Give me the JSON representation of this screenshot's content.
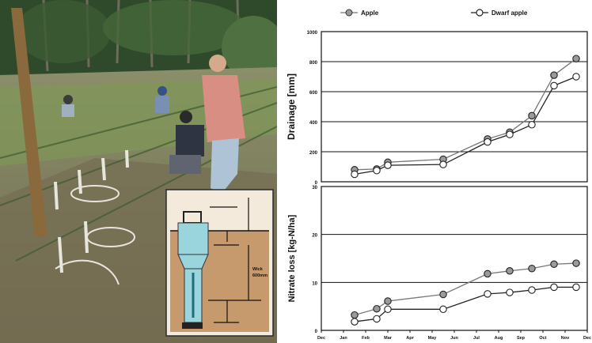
{
  "photo": {
    "inset_labels": [
      "Wick",
      "600mm"
    ]
  },
  "chart_data": [
    {
      "type": "line",
      "ylabel": "Drainage [mm]",
      "ylim": [
        0,
        1000
      ],
      "yticks": [
        "0",
        "200",
        "400",
        "600",
        "800",
        "1000"
      ],
      "x": [
        1.5,
        2.5,
        3,
        5.5,
        7.5,
        8.5,
        9.5,
        10.5,
        11.5
      ],
      "series": [
        {
          "name": "Apple",
          "marker_color": "#9a9a9a",
          "values": [
            80,
            85,
            130,
            150,
            285,
            330,
            440,
            710,
            820
          ]
        },
        {
          "name": "Dwarf apple",
          "marker_color": "#ffffff",
          "values": [
            50,
            75,
            110,
            115,
            265,
            315,
            380,
            640,
            700
          ]
        }
      ],
      "legend": "top",
      "grid": true
    },
    {
      "type": "line",
      "ylabel": "Nitrate loss [kg-N/ha]",
      "ylim": [
        0,
        30
      ],
      "yticks": [
        "0",
        "10",
        "20",
        "30"
      ],
      "xticks": [
        "Dec",
        "Jan",
        "Feb",
        "Mar",
        "Apr",
        "May",
        "Jun",
        "Jul",
        "Aug",
        "Sep",
        "Oct",
        "Nov",
        "Dec"
      ],
      "x": [
        1.5,
        2.5,
        3,
        5.5,
        7.5,
        8.5,
        9.5,
        10.5,
        11.5
      ],
      "series": [
        {
          "name": "Apple",
          "marker_color": "#9a9a9a",
          "values": [
            3.2,
            4.5,
            6.1,
            7.5,
            11.8,
            12.4,
            12.9,
            13.8,
            14.0
          ]
        },
        {
          "name": "Dwarf apple",
          "marker_color": "#ffffff",
          "values": [
            1.8,
            2.4,
            4.4,
            4.4,
            7.6,
            7.9,
            8.4,
            9.0,
            9.0
          ]
        }
      ],
      "grid": true
    }
  ]
}
